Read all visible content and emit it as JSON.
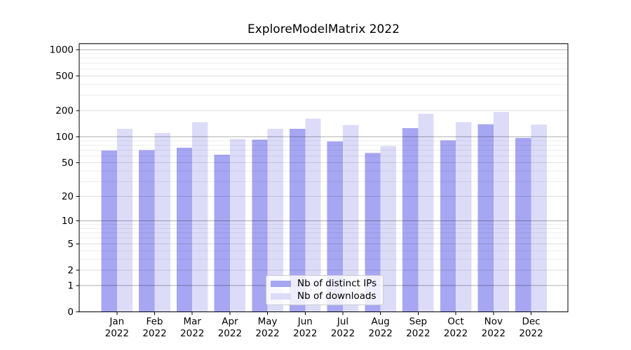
{
  "chart_data": {
    "type": "bar",
    "title": "ExploreModelMatrix 2022",
    "year_label": "2022",
    "categories": [
      "Jan",
      "Feb",
      "Mar",
      "Apr",
      "May",
      "Jun",
      "Jul",
      "Aug",
      "Sep",
      "Oct",
      "Nov",
      "Dec"
    ],
    "series": [
      {
        "key": "distinct-ips",
        "name": "Nb of distinct IPs",
        "color": "#a6a6f2",
        "values": [
          69,
          70,
          75,
          62,
          93,
          124,
          88,
          65,
          126,
          91,
          140,
          97
        ]
      },
      {
        "key": "downloads",
        "name": "Nb of downloads",
        "color": "#dcdcf9",
        "values": [
          123,
          111,
          147,
          94,
          123,
          162,
          137,
          78,
          184,
          147,
          193,
          138
        ]
      }
    ],
    "y_axis": {
      "scale": "log10(1+x)",
      "tick_values": [
        0,
        1,
        2,
        5,
        10,
        20,
        50,
        100,
        200,
        500,
        1000
      ],
      "range": [
        0,
        1172
      ]
    },
    "grid": {
      "major_values": [
        1,
        10,
        100,
        1000
      ],
      "labeled_minor_values": [
        2,
        5,
        20,
        50,
        200,
        500
      ],
      "faint_minor_values": [
        3,
        4,
        6,
        7,
        8,
        9,
        30,
        40,
        60,
        70,
        80,
        90,
        300,
        400,
        600,
        700,
        800,
        900
      ]
    },
    "legend": {
      "position": "inside-bottom-center"
    }
  }
}
